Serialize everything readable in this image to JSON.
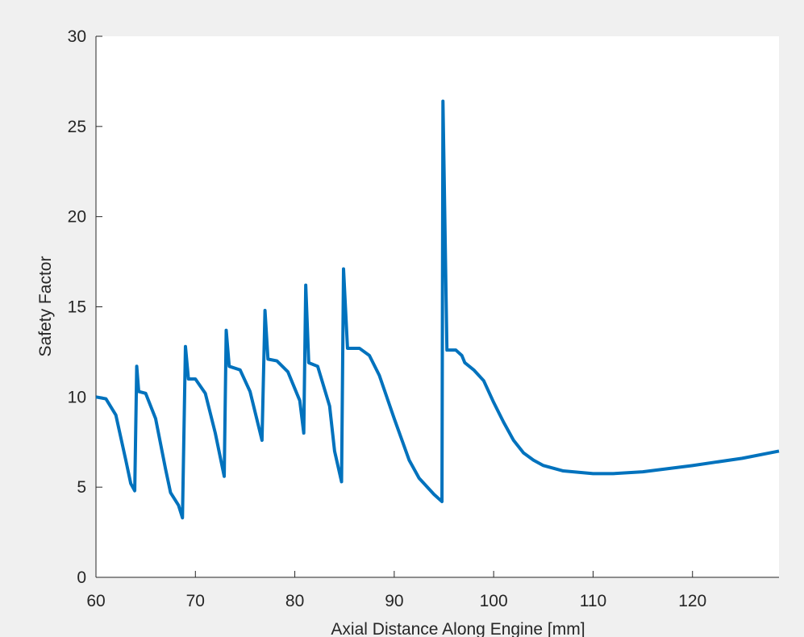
{
  "chart_data": {
    "type": "line",
    "x_label": "Axial Distance Along Engine [mm]",
    "y_label": "Safety Factor",
    "xlim": [
      60,
      128.7
    ],
    "ylim": [
      0,
      30
    ],
    "xticks": [
      60,
      70,
      80,
      90,
      100,
      110,
      120
    ],
    "yticks": [
      0,
      5,
      10,
      15,
      20,
      25,
      30
    ],
    "grid": false,
    "series": [
      {
        "color": "#0072bd",
        "x": [
          60,
          61,
          62,
          63,
          63.5,
          63.9,
          64.1,
          64.3,
          65,
          66,
          67,
          67.5,
          68.3,
          68.7,
          69.0,
          69.3,
          70,
          71,
          72,
          72.9,
          73.1,
          73.4,
          74.5,
          75.5,
          76.7,
          77.0,
          77.3,
          78.2,
          79.3,
          80.5,
          80.9,
          81.1,
          81.4,
          82.3,
          83.5,
          84,
          84.7,
          84.9,
          85.3,
          86.5,
          87.5,
          88.5,
          90,
          91.5,
          92.5,
          94,
          94.8,
          94.9,
          95.3,
          96.2,
          96.8,
          97.1,
          98,
          99,
          100,
          101,
          102,
          103,
          104,
          105,
          107,
          110,
          112,
          115,
          120,
          125,
          128.7
        ],
        "values": [
          10.0,
          9.9,
          9.0,
          6.5,
          5.2,
          4.8,
          11.7,
          10.3,
          10.2,
          8.8,
          6.0,
          4.7,
          4.0,
          3.3,
          12.8,
          11.0,
          11.0,
          10.2,
          8.0,
          5.6,
          13.7,
          11.7,
          11.5,
          10.3,
          7.6,
          14.8,
          12.1,
          12.0,
          11.4,
          9.8,
          8.0,
          16.2,
          11.9,
          11.7,
          9.5,
          7.0,
          5.3,
          17.1,
          12.7,
          12.7,
          12.3,
          11.2,
          8.8,
          6.5,
          5.5,
          4.6,
          4.2,
          26.4,
          12.6,
          12.6,
          12.3,
          11.9,
          11.5,
          10.9,
          9.7,
          8.6,
          7.6,
          6.9,
          6.5,
          6.2,
          5.9,
          5.75,
          5.75,
          5.85,
          6.2,
          6.6,
          7.0
        ]
      }
    ]
  }
}
